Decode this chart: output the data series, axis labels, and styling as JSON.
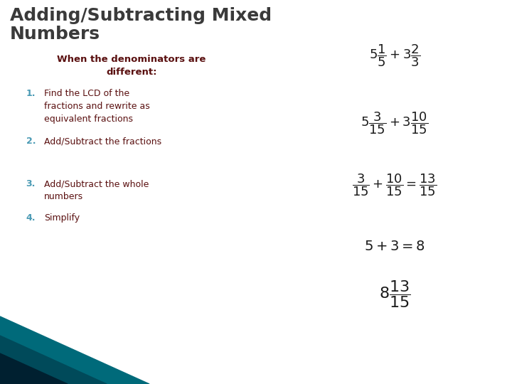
{
  "title_line1": "Adding/Subtracting Mixed",
  "title_line2": "Numbers",
  "title_color": "#3a3a3a",
  "title_fontsize": 18,
  "bg_color": "#ffffff",
  "subtitle": "When the denominators are\ndifferent:",
  "subtitle_color": "#5a1010",
  "subtitle_fontsize": 9.5,
  "steps": [
    "Find the LCD of the\nfractions and rewrite as\nequivalent fractions",
    "Add/Subtract the fractions",
    "Add/Subtract the whole\nnumbers",
    "Simplify"
  ],
  "step_color": "#5a1010",
  "step_fontsize": 9,
  "step_number_color": "#4a9ab4",
  "math_color": "#1a1a1a",
  "math_fontsize": 11,
  "corner_colors": [
    "#006a7a",
    "#004a5a",
    "#002030"
  ]
}
